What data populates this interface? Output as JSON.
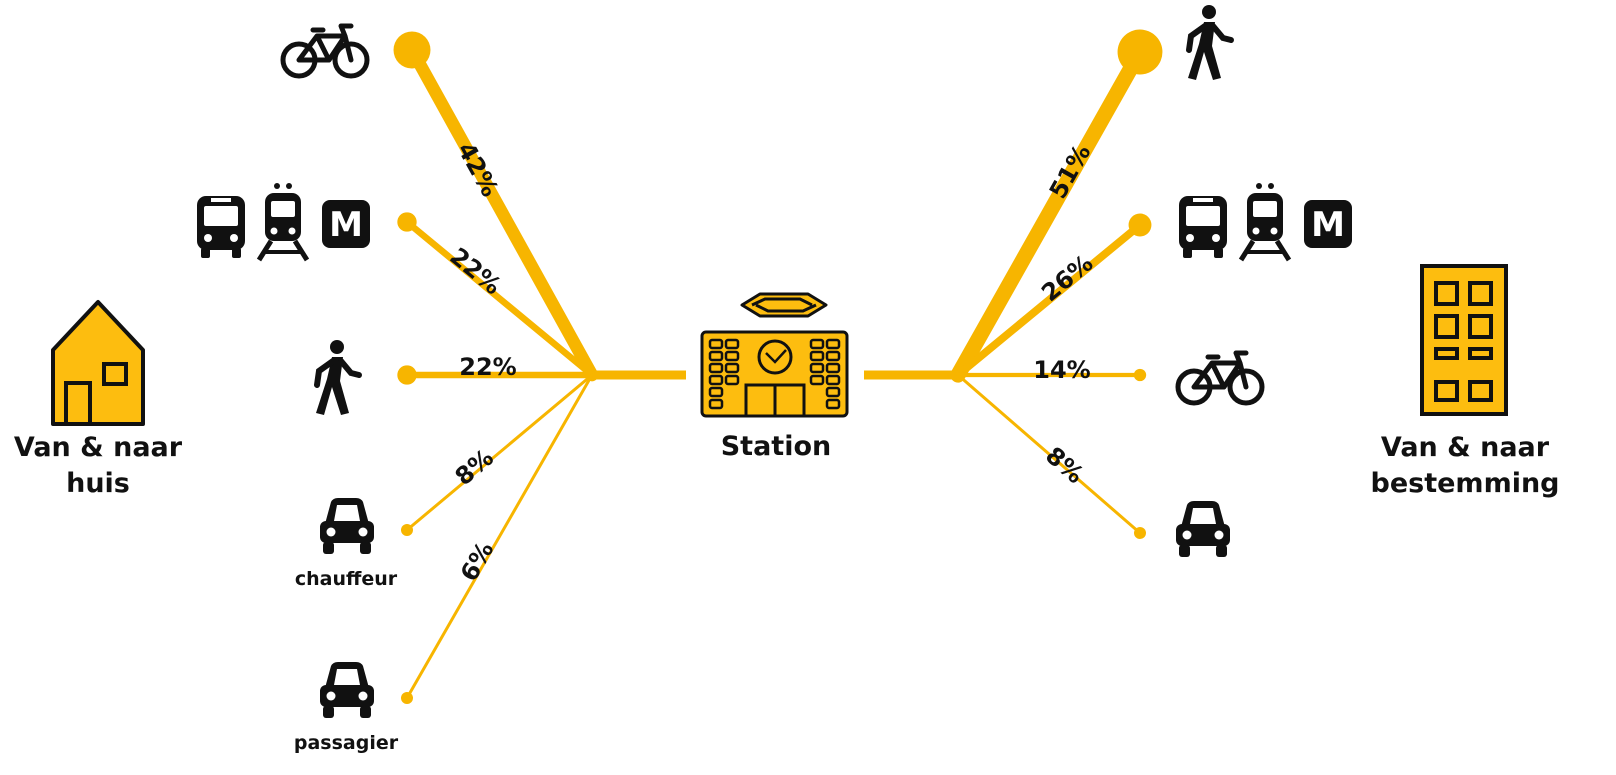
{
  "colors": {
    "accent": "#FDBD0F",
    "icon": "#111111",
    "line": "#F7B500"
  },
  "home": {
    "label_line1": "Van & naar",
    "label_line2": "huis",
    "icon": "house-icon"
  },
  "destination": {
    "label_line1": "Van & naar",
    "label_line2": "bestemming",
    "icon": "office-building-icon"
  },
  "station": {
    "label": "Station",
    "icon": "station-building-icon"
  },
  "left_branches": [
    {
      "mode": "fiets",
      "icon": "bicycle-icon",
      "percent": "42%",
      "share": 0.42,
      "caption": ""
    },
    {
      "mode": "btm",
      "icon": "bus-tram-metro-icon",
      "percent": "22%",
      "share": 0.22,
      "caption": ""
    },
    {
      "mode": "lopen",
      "icon": "pedestrian-icon",
      "percent": "22%",
      "share": 0.22,
      "caption": ""
    },
    {
      "mode": "auto-chauffeur",
      "icon": "car-icon",
      "percent": "8%",
      "share": 0.08,
      "caption": "chauffeur"
    },
    {
      "mode": "auto-passagier",
      "icon": "car-icon",
      "percent": "6%",
      "share": 0.06,
      "caption": "passagier"
    }
  ],
  "right_branches": [
    {
      "mode": "lopen",
      "icon": "pedestrian-icon",
      "percent": "51%",
      "share": 0.51
    },
    {
      "mode": "btm",
      "icon": "bus-tram-metro-icon",
      "percent": "26%",
      "share": 0.26
    },
    {
      "mode": "fiets",
      "icon": "bicycle-icon",
      "percent": "14%",
      "share": 0.14
    },
    {
      "mode": "auto",
      "icon": "car-icon",
      "percent": "8%",
      "share": 0.08
    }
  ],
  "metro_letter": "M"
}
